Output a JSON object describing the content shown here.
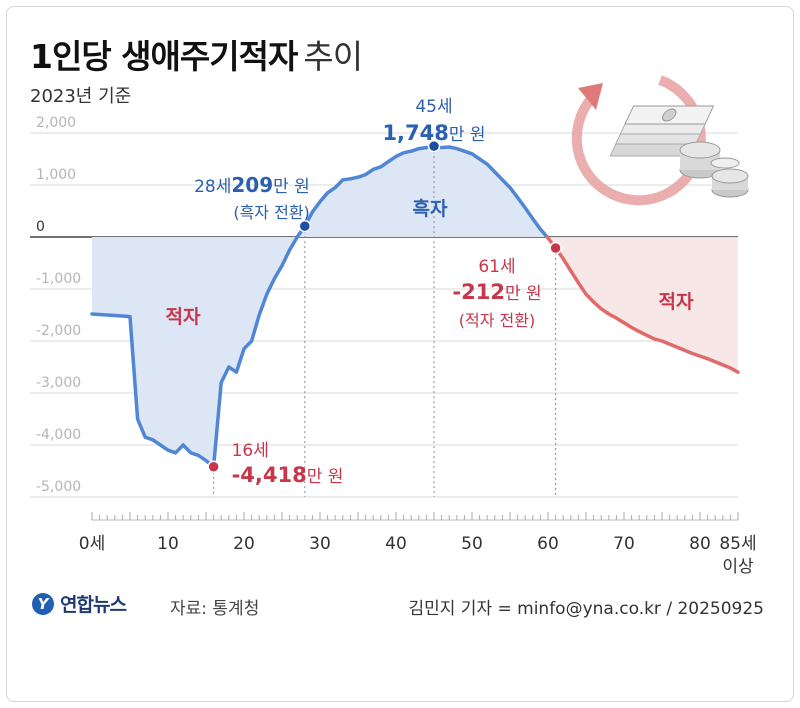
{
  "header": {
    "title_main": "1인당 생애주기적자",
    "title_sub": "추이",
    "subtitle": "2023년 기준"
  },
  "footer": {
    "logo_text": "연합뉴스",
    "source": "자료: 통계청",
    "credit": "김민지 기자 = minfo@yna.co.kr / 20250925"
  },
  "colors": {
    "deficit_line": "#e06a6a",
    "deficit_fill": "#f6e4e4",
    "surplus_line": "#4f86d6",
    "surplus_fill": "#dde6f4",
    "deficit_text": "#c7364a",
    "surplus_text": "#2b5fb0",
    "point_red": "#c7364a",
    "point_blue": "#1f4fa3"
  },
  "chart_data": {
    "type": "area",
    "xlim": [
      0,
      85
    ],
    "ylim": [
      -5000,
      2000
    ],
    "unit": "만원",
    "x_ticks": [
      {
        "value": 0,
        "label": "0세"
      },
      {
        "value": 10,
        "label": "10"
      },
      {
        "value": 20,
        "label": "20"
      },
      {
        "value": 30,
        "label": "30"
      },
      {
        "value": 40,
        "label": "40"
      },
      {
        "value": 50,
        "label": "50"
      },
      {
        "value": 60,
        "label": "60"
      },
      {
        "value": 70,
        "label": "70"
      },
      {
        "value": 80,
        "label": "80"
      },
      {
        "value": 85,
        "label": "85세",
        "label2": "이상"
      }
    ],
    "y_ticks": [
      {
        "value": 2000,
        "label": "2,000"
      },
      {
        "value": 1000,
        "label": "1,000"
      },
      {
        "value": 0,
        "label": "0"
      },
      {
        "value": -1000,
        "label": "-1,000"
      },
      {
        "value": -2000,
        "label": "-2,000"
      },
      {
        "value": -3000,
        "label": "-3,000"
      },
      {
        "value": -4000,
        "label": "-4,000"
      },
      {
        "value": -5000,
        "label": "-5,000"
      }
    ],
    "region_labels": {
      "deficit_left": "적자",
      "deficit_right": "적자",
      "surplus": "흑자"
    },
    "x": [
      0,
      1,
      2,
      3,
      4,
      5,
      6,
      7,
      8,
      9,
      10,
      11,
      12,
      13,
      14,
      15,
      16,
      17,
      18,
      19,
      20,
      21,
      22,
      23,
      24,
      25,
      26,
      27,
      28,
      29,
      30,
      31,
      32,
      33,
      34,
      35,
      36,
      37,
      38,
      39,
      40,
      41,
      42,
      43,
      44,
      45,
      46,
      47,
      48,
      49,
      50,
      51,
      52,
      53,
      54,
      55,
      56,
      57,
      58,
      59,
      60,
      61,
      62,
      63,
      64,
      65,
      66,
      67,
      68,
      69,
      70,
      71,
      72,
      73,
      74,
      75,
      76,
      77,
      78,
      79,
      80,
      81,
      82,
      83,
      84,
      85
    ],
    "values": [
      -1480,
      -1490,
      -1500,
      -1510,
      -1520,
      -1530,
      -3500,
      -3850,
      -3900,
      -4000,
      -4100,
      -4150,
      -4000,
      -4150,
      -4200,
      -4300,
      -4418,
      -2800,
      -2500,
      -2600,
      -2150,
      -2000,
      -1500,
      -1100,
      -800,
      -550,
      -250,
      0,
      209,
      480,
      680,
      850,
      950,
      1100,
      1120,
      1150,
      1200,
      1300,
      1350,
      1450,
      1550,
      1620,
      1650,
      1700,
      1720,
      1748,
      1720,
      1730,
      1700,
      1650,
      1600,
      1500,
      1400,
      1250,
      1100,
      950,
      760,
      560,
      350,
      150,
      -20,
      -212,
      -420,
      -650,
      -880,
      -1100,
      -1250,
      -1380,
      -1480,
      -1560,
      -1650,
      -1740,
      -1820,
      -1890,
      -1960,
      -2000,
      -2060,
      -2120,
      -2180,
      -2240,
      -2290,
      -2340,
      -2400,
      -2460,
      -2520,
      -2600
    ],
    "annotations": [
      {
        "x": 16,
        "y": -4418,
        "age_label": "16세",
        "value_label": "-4,418",
        "unit_label": "만 원",
        "type": "min"
      },
      {
        "x": 28,
        "y": 209,
        "age_label": "28세",
        "value_label": "209",
        "unit_label": "만 원",
        "note": "(흑자 전환)",
        "type": "turn-surplus"
      },
      {
        "x": 45,
        "y": 1748,
        "age_label": "45세",
        "value_label": "1,748",
        "unit_label": "만 원",
        "type": "max"
      },
      {
        "x": 61,
        "y": -212,
        "age_label": "61세",
        "value_label": "-212",
        "unit_label": "만 원",
        "note": "(적자 전환)",
        "type": "turn-deficit"
      }
    ],
    "grid": true
  },
  "icons": {
    "illustration": "money-cycle-icon"
  }
}
